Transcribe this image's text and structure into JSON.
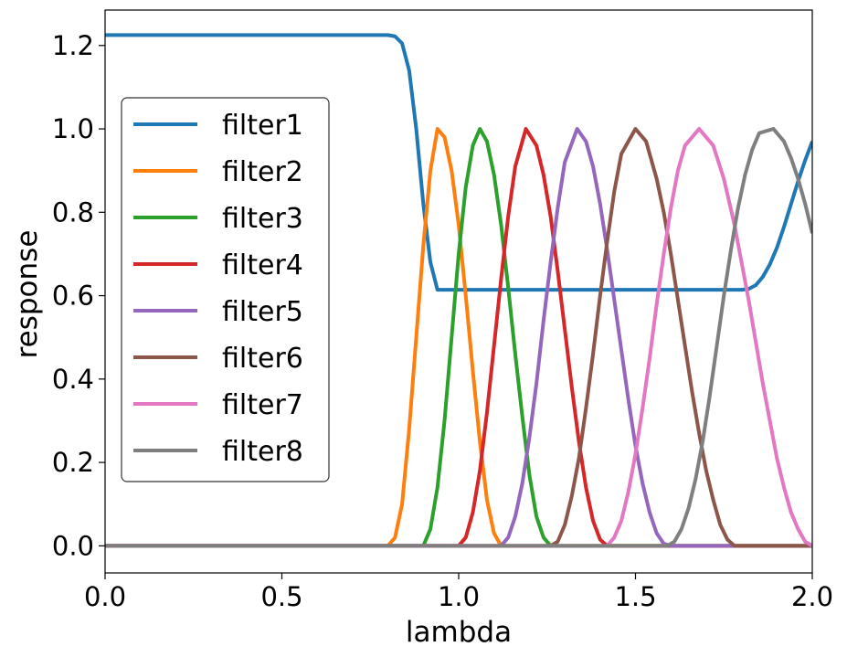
{
  "chart_data": {
    "type": "line",
    "title": "",
    "xlabel": "lambda",
    "ylabel": "response",
    "xlim": [
      0.0,
      2.0
    ],
    "ylim": [
      -0.065,
      1.285
    ],
    "xticks": [
      "0.0",
      "0.5",
      "1.0",
      "1.5",
      "2.0"
    ],
    "xtick_values": [
      0.0,
      0.5,
      1.0,
      1.5,
      2.0
    ],
    "yticks": [
      "0.0",
      "0.2",
      "0.4",
      "0.6",
      "0.8",
      "1.0",
      "1.2"
    ],
    "ytick_values": [
      0.0,
      0.2,
      0.4,
      0.6,
      0.8,
      1.0,
      1.2
    ],
    "grid": false,
    "legend_position": "center-left",
    "series": [
      {
        "name": "filter1",
        "color": "#1f77b4",
        "x": [
          0.0,
          0.8,
          0.82,
          0.84,
          0.86,
          0.88,
          0.9,
          0.92,
          0.94,
          1.8,
          1.82,
          1.84,
          1.86,
          1.88,
          1.9,
          1.92,
          1.94,
          1.96,
          1.98,
          2.0
        ],
        "y": [
          1.225,
          1.225,
          1.222,
          1.205,
          1.14,
          1.0,
          0.82,
          0.68,
          0.614,
          0.614,
          0.616,
          0.625,
          0.645,
          0.675,
          0.715,
          0.765,
          0.82,
          0.875,
          0.925,
          0.97
        ]
      },
      {
        "name": "filter2",
        "color": "#ff7f0e",
        "x": [
          0.0,
          0.8,
          0.82,
          0.84,
          0.86,
          0.88,
          0.9,
          0.92,
          0.94,
          0.96,
          0.98,
          1.0,
          1.02,
          1.04,
          1.06,
          1.08,
          1.1,
          1.12,
          2.0
        ],
        "y": [
          0,
          0,
          0.02,
          0.1,
          0.28,
          0.5,
          0.72,
          0.9,
          1.0,
          0.98,
          0.9,
          0.77,
          0.6,
          0.42,
          0.25,
          0.11,
          0.03,
          0,
          0
        ]
      },
      {
        "name": "filter3",
        "color": "#2ca02c",
        "x": [
          0.0,
          0.9,
          0.92,
          0.94,
          0.96,
          0.98,
          1.0,
          1.02,
          1.04,
          1.06,
          1.08,
          1.1,
          1.12,
          1.14,
          1.16,
          1.18,
          1.2,
          1.22,
          1.24,
          1.26,
          2.0
        ],
        "y": [
          0,
          0,
          0.04,
          0.14,
          0.3,
          0.5,
          0.7,
          0.86,
          0.96,
          1.0,
          0.97,
          0.89,
          0.77,
          0.62,
          0.46,
          0.31,
          0.17,
          0.07,
          0.02,
          0,
          0
        ]
      },
      {
        "name": "filter4",
        "color": "#d62728",
        "x": [
          0.0,
          1.0,
          1.02,
          1.04,
          1.06,
          1.08,
          1.1,
          1.12,
          1.14,
          1.16,
          1.19,
          1.22,
          1.24,
          1.26,
          1.28,
          1.3,
          1.32,
          1.34,
          1.36,
          1.38,
          1.4,
          1.42,
          2.0
        ],
        "y": [
          0,
          0,
          0.02,
          0.08,
          0.18,
          0.32,
          0.48,
          0.64,
          0.79,
          0.91,
          1.0,
          0.96,
          0.89,
          0.79,
          0.66,
          0.52,
          0.38,
          0.25,
          0.14,
          0.06,
          0.015,
          0,
          0
        ]
      },
      {
        "name": "filter5",
        "color": "#9467bd",
        "x": [
          0.0,
          1.12,
          1.14,
          1.16,
          1.18,
          1.2,
          1.22,
          1.24,
          1.26,
          1.28,
          1.3,
          1.335,
          1.36,
          1.38,
          1.4,
          1.42,
          1.44,
          1.46,
          1.48,
          1.5,
          1.52,
          1.54,
          1.56,
          1.58,
          1.6,
          2.0
        ],
        "y": [
          0,
          0,
          0.02,
          0.07,
          0.15,
          0.26,
          0.39,
          0.54,
          0.68,
          0.81,
          0.92,
          1.0,
          0.97,
          0.91,
          0.82,
          0.71,
          0.59,
          0.47,
          0.35,
          0.24,
          0.15,
          0.08,
          0.03,
          0.005,
          0,
          0
        ]
      },
      {
        "name": "filter6",
        "color": "#8c564b",
        "x": [
          0.0,
          1.26,
          1.28,
          1.3,
          1.32,
          1.34,
          1.36,
          1.38,
          1.4,
          1.42,
          1.44,
          1.46,
          1.5,
          1.53,
          1.56,
          1.58,
          1.6,
          1.62,
          1.64,
          1.66,
          1.68,
          1.7,
          1.72,
          1.74,
          1.76,
          1.78,
          2.0
        ],
        "y": [
          0,
          0,
          0.01,
          0.05,
          0.12,
          0.21,
          0.33,
          0.46,
          0.6,
          0.73,
          0.85,
          0.94,
          1.0,
          0.97,
          0.88,
          0.8,
          0.7,
          0.59,
          0.48,
          0.37,
          0.27,
          0.18,
          0.11,
          0.05,
          0.015,
          0,
          0
        ]
      },
      {
        "name": "filter7",
        "color": "#e377c2",
        "x": [
          0.0,
          1.42,
          1.44,
          1.46,
          1.48,
          1.5,
          1.52,
          1.54,
          1.56,
          1.58,
          1.6,
          1.62,
          1.64,
          1.68,
          1.72,
          1.75,
          1.78,
          1.8,
          1.82,
          1.84,
          1.86,
          1.88,
          1.9,
          1.92,
          1.94,
          1.96,
          1.98,
          2.0
        ],
        "y": [
          0,
          0,
          0.02,
          0.06,
          0.13,
          0.22,
          0.33,
          0.45,
          0.58,
          0.7,
          0.81,
          0.9,
          0.96,
          1.0,
          0.96,
          0.88,
          0.77,
          0.68,
          0.59,
          0.49,
          0.39,
          0.3,
          0.21,
          0.14,
          0.08,
          0.04,
          0.01,
          0
        ]
      },
      {
        "name": "filter8",
        "color": "#7f7f7f",
        "x": [
          0.0,
          1.59,
          1.61,
          1.63,
          1.65,
          1.67,
          1.69,
          1.71,
          1.73,
          1.75,
          1.77,
          1.79,
          1.81,
          1.83,
          1.85,
          1.89,
          1.92,
          1.94,
          1.96,
          1.98,
          2.0
        ],
        "y": [
          0,
          0,
          0.01,
          0.04,
          0.09,
          0.16,
          0.25,
          0.36,
          0.48,
          0.6,
          0.71,
          0.81,
          0.89,
          0.95,
          0.99,
          1.0,
          0.97,
          0.93,
          0.88,
          0.82,
          0.75
        ]
      }
    ]
  }
}
